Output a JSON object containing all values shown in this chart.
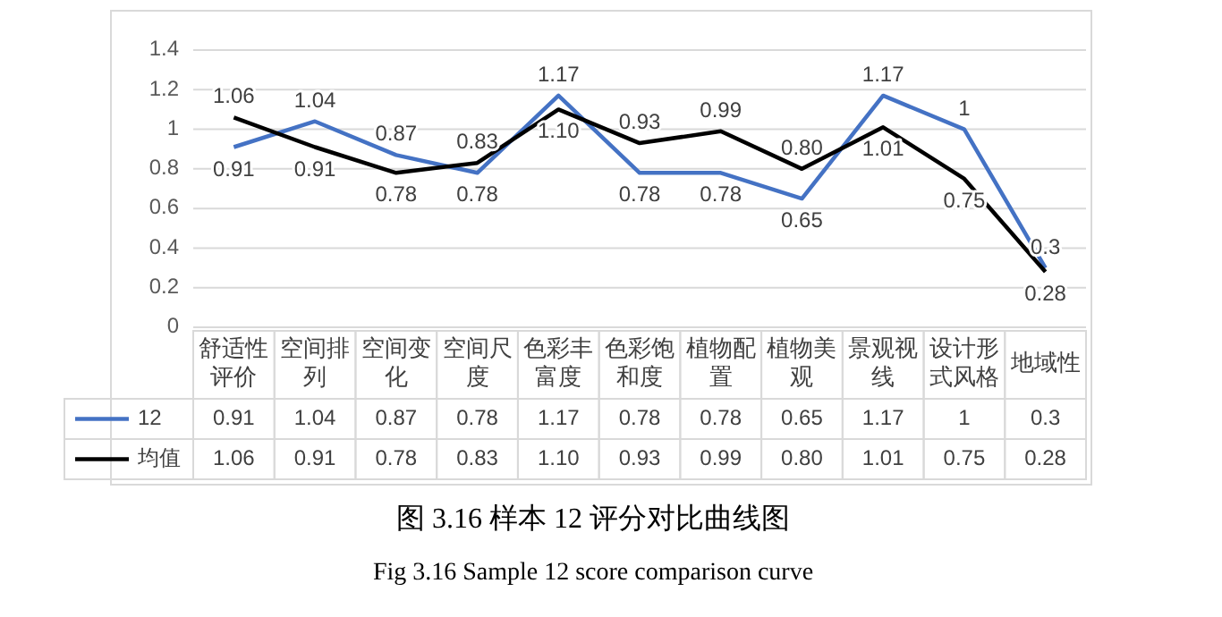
{
  "chart_data": {
    "type": "line",
    "categories": [
      "舒适性评价",
      "空间排列",
      "空间变化",
      "空间尺度",
      "色彩丰富度",
      "色彩饱和度",
      "植物配置",
      "植物美观",
      "景观视线",
      "设计形式风格",
      "地域性"
    ],
    "series": [
      {
        "name": "12",
        "color": "#4472c4",
        "values": [
          0.91,
          1.04,
          0.87,
          0.78,
          1.17,
          0.78,
          0.78,
          0.65,
          1.17,
          1,
          0.3
        ],
        "value_labels": [
          "0.91",
          "1.04",
          "0.87",
          "0.78",
          "1.17",
          "0.78",
          "0.78",
          "0.65",
          "1.17",
          "1",
          "0.3"
        ]
      },
      {
        "name": "均值",
        "color": "#000000",
        "values": [
          1.06,
          0.91,
          0.78,
          0.83,
          1.1,
          0.93,
          0.99,
          0.8,
          1.01,
          0.75,
          0.28
        ],
        "value_labels": [
          "1.06",
          "0.91",
          "0.78",
          "0.83",
          "1.10",
          "0.93",
          "0.99",
          "0.80",
          "1.01",
          "0.75",
          "0.28"
        ]
      }
    ],
    "ylim": [
      0,
      1.4
    ],
    "yticks": [
      0,
      0.2,
      0.4,
      0.6,
      0.8,
      {
        "value": 1,
        "label": "1"
      },
      1.2,
      1.4
    ],
    "grid": "y",
    "legend": "bottom",
    "marker": "none",
    "line_style": "solid",
    "annotations": [
      "图  3.16    样本 12 评分对比曲线图",
      "Fig 3.16    Sample 12 score comparison curve"
    ]
  }
}
